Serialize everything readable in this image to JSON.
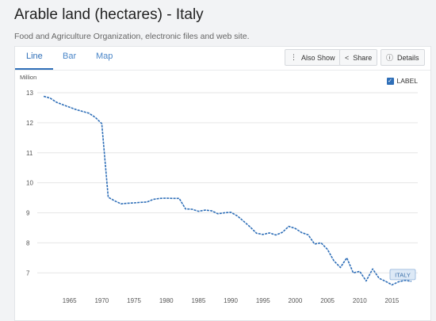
{
  "header": {
    "title": "Arable land (hectares) - Italy",
    "source": "Food and Agriculture Organization, electronic files and web site."
  },
  "tabs": [
    {
      "label": "Line"
    },
    {
      "label": "Bar"
    },
    {
      "label": "Map"
    }
  ],
  "toolbar": {
    "also_show_label": "Also Show",
    "share_label": "Share",
    "details_label": "Details"
  },
  "legend": {
    "label_toggle": "LABEL"
  },
  "colors": {
    "accent": "#2f6fb8",
    "line": "#2f6fb8",
    "grid": "#e6e6e6"
  },
  "chart_data": {
    "type": "line",
    "ylabel": "Million",
    "ylim": [
      6.4,
      13
    ],
    "xlim": [
      1960,
      2019
    ],
    "y_ticks": [
      7,
      8,
      9,
      10,
      11,
      12,
      13
    ],
    "x_ticks": [
      1965,
      1970,
      1975,
      1980,
      1985,
      1990,
      1995,
      2000,
      2005,
      2010,
      2015
    ],
    "grid": true,
    "series": [
      {
        "name": "ITALY",
        "x": [
          1961,
          1962,
          1963,
          1964,
          1965,
          1966,
          1967,
          1968,
          1969,
          1970,
          1971,
          1972,
          1973,
          1974,
          1975,
          1976,
          1977,
          1978,
          1979,
          1980,
          1981,
          1982,
          1983,
          1984,
          1985,
          1986,
          1987,
          1988,
          1989,
          1990,
          1991,
          1992,
          1993,
          1994,
          1995,
          1996,
          1997,
          1998,
          1999,
          2000,
          2001,
          2002,
          2003,
          2004,
          2005,
          2006,
          2007,
          2008,
          2009,
          2010,
          2011,
          2012,
          2013,
          2014,
          2015,
          2016,
          2017,
          2018
        ],
        "values": [
          12.88,
          12.82,
          12.68,
          12.6,
          12.52,
          12.44,
          12.38,
          12.32,
          12.18,
          11.97,
          9.52,
          9.4,
          9.3,
          9.32,
          9.33,
          9.35,
          9.36,
          9.45,
          9.48,
          9.49,
          9.48,
          9.48,
          9.13,
          9.12,
          9.05,
          9.09,
          9.07,
          8.97,
          9.0,
          9.02,
          8.9,
          8.72,
          8.53,
          8.32,
          8.28,
          8.33,
          8.26,
          8.35,
          8.55,
          8.48,
          8.34,
          8.27,
          7.96,
          8.0,
          7.78,
          7.4,
          7.18,
          7.5,
          7.0,
          7.05,
          6.73,
          7.13,
          6.82,
          6.72,
          6.6,
          6.7,
          6.75,
          6.72
        ]
      }
    ]
  }
}
